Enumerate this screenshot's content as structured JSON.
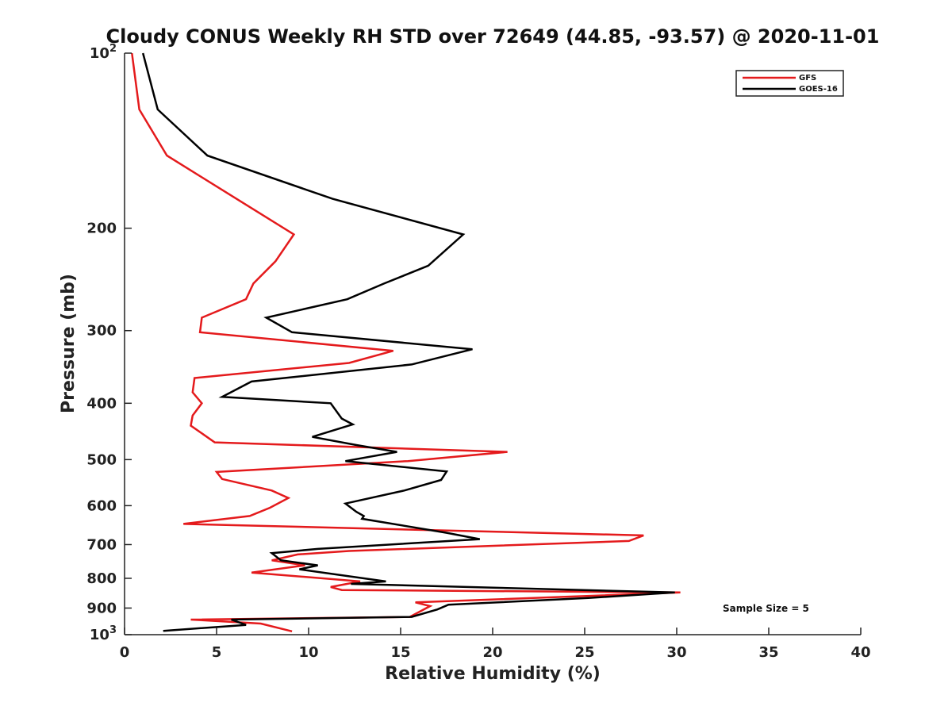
{
  "chart_data": {
    "type": "line",
    "title": "Cloudy CONUS Weekly RH STD over 72649 (44.85, -93.57) @ 2020-11-01",
    "xlabel": "Relative Humidity (%)",
    "ylabel": "Pressure (mb)",
    "xlim": [
      0,
      40
    ],
    "ylim": [
      100,
      1000
    ],
    "y_scale": "log",
    "y_reversed": true,
    "x_ticks": [
      "0",
      "5",
      "10",
      "15",
      "20",
      "25",
      "30",
      "35",
      "40"
    ],
    "x_tick_values": [
      0,
      5,
      10,
      15,
      20,
      25,
      30,
      35,
      40
    ],
    "y_ticks": [
      {
        "value": 200,
        "label": "200"
      },
      {
        "value": 300,
        "label": "300"
      },
      {
        "value": 400,
        "label": "400"
      },
      {
        "value": 500,
        "label": "500"
      },
      {
        "value": 600,
        "label": "600"
      },
      {
        "value": 700,
        "label": "700"
      },
      {
        "value": 800,
        "label": "800"
      },
      {
        "value": 900,
        "label": "900"
      }
    ],
    "y_tick_top": {
      "value": 100,
      "base": "10",
      "exp": "2"
    },
    "y_tick_bottom": {
      "value": 1000,
      "base": "10",
      "exp": "3"
    },
    "legend_position": "top-right",
    "grid": false,
    "annotation": "Sample Size = 5",
    "series": [
      {
        "name": "GFS",
        "color": "#e41a1c",
        "points": [
          [
            0.4,
            100
          ],
          [
            0.8,
            125
          ],
          [
            2.3,
            150
          ],
          [
            9.2,
            205
          ],
          [
            8.2,
            228
          ],
          [
            7.0,
            249
          ],
          [
            6.6,
            265
          ],
          [
            4.2,
            285
          ],
          [
            4.1,
            302
          ],
          [
            14.6,
            325
          ],
          [
            12.2,
            341
          ],
          [
            3.8,
            362
          ],
          [
            3.7,
            383
          ],
          [
            4.2,
            400
          ],
          [
            3.7,
            420
          ],
          [
            3.6,
            437
          ],
          [
            4.9,
            467
          ],
          [
            20.8,
            485
          ],
          [
            15.4,
            503
          ],
          [
            5.0,
            525
          ],
          [
            5.3,
            540
          ],
          [
            8.0,
            565
          ],
          [
            8.9,
            582
          ],
          [
            7.9,
            605
          ],
          [
            6.8,
            625
          ],
          [
            3.2,
            645
          ],
          [
            28.2,
            675
          ],
          [
            27.4,
            690
          ],
          [
            12.2,
            718
          ],
          [
            9.4,
            728
          ],
          [
            8.0,
            745
          ],
          [
            9.8,
            760
          ],
          [
            6.9,
            782
          ],
          [
            12.8,
            810
          ],
          [
            11.2,
            828
          ],
          [
            11.8,
            838
          ],
          [
            30.2,
            846
          ],
          [
            15.8,
            880
          ],
          [
            16.6,
            893
          ],
          [
            15.5,
            932
          ],
          [
            3.6,
            942
          ],
          [
            7.4,
            957
          ],
          [
            9.1,
            987
          ]
        ]
      },
      {
        "name": "GOES-16",
        "color": "#000000",
        "points": [
          [
            1.0,
            100
          ],
          [
            1.8,
            125
          ],
          [
            4.5,
            150
          ],
          [
            11.3,
            178
          ],
          [
            18.4,
            205
          ],
          [
            16.5,
            232
          ],
          [
            14.1,
            249
          ],
          [
            12.1,
            265
          ],
          [
            7.7,
            285
          ],
          [
            9.1,
            302
          ],
          [
            18.9,
            323
          ],
          [
            15.6,
            343
          ],
          [
            6.9,
            367
          ],
          [
            5.3,
            390
          ],
          [
            11.2,
            400
          ],
          [
            11.8,
            425
          ],
          [
            12.4,
            435
          ],
          [
            10.2,
            457
          ],
          [
            12.6,
            472
          ],
          [
            14.8,
            485
          ],
          [
            12.0,
            503
          ],
          [
            17.5,
            524
          ],
          [
            17.2,
            542
          ],
          [
            15.2,
            565
          ],
          [
            12.0,
            595
          ],
          [
            12.6,
            615
          ],
          [
            13.0,
            625
          ],
          [
            12.9,
            632
          ],
          [
            17.5,
            668
          ],
          [
            19.3,
            685
          ],
          [
            10.5,
            712
          ],
          [
            8.0,
            724
          ],
          [
            8.5,
            745
          ],
          [
            10.5,
            760
          ],
          [
            9.5,
            772
          ],
          [
            14.2,
            810
          ],
          [
            12.3,
            818
          ],
          [
            29.9,
            846
          ],
          [
            25.2,
            865
          ],
          [
            17.6,
            888
          ],
          [
            17.0,
            905
          ],
          [
            15.6,
            932
          ],
          [
            5.8,
            942
          ],
          [
            6.6,
            962
          ],
          [
            2.1,
            985
          ]
        ]
      }
    ]
  }
}
